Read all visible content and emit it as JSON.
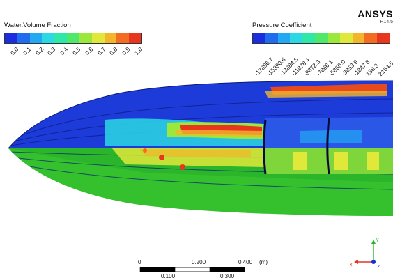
{
  "water_legend": {
    "title": "Water.Volume Fraction",
    "ticks": [
      "0.0",
      "0.1",
      "0.2",
      "0.3",
      "0.4",
      "0.5",
      "0.6",
      "0.7",
      "0.8",
      "0.9",
      "1.0"
    ],
    "colors": [
      "#1a2ee0",
      "#1f6cf0",
      "#23a8f2",
      "#2ad9e4",
      "#2ee8a8",
      "#4fe86a",
      "#9ae83c",
      "#e0e83a",
      "#f3b52c",
      "#f36c22",
      "#e7351e"
    ]
  },
  "pressure_legend": {
    "title": "Pressure Coefficient",
    "ticks": [
      "-17896.7",
      "-15890.6",
      "-13884.5",
      "-11878.4",
      "-9872.3",
      "-7866.1",
      "-5860.0",
      "-3853.9",
      "-1847.8",
      "158.3",
      "2164.5"
    ],
    "colors": [
      "#1a2ee0",
      "#1f6cf0",
      "#23a8f2",
      "#2ad9e4",
      "#2ee8a8",
      "#4fe86a",
      "#9ae83c",
      "#e0e83a",
      "#f3b52c",
      "#f36c22",
      "#e7351e"
    ]
  },
  "brand": {
    "name": "ANSYS",
    "version": "R14.5"
  },
  "scale": {
    "ticks_top": [
      "0",
      "0.200",
      "0.400"
    ],
    "ticks_bottom": [
      "0.100",
      "0.300"
    ],
    "unit": "(m)"
  },
  "axes": {
    "y": "y",
    "x": "x",
    "z": "z"
  }
}
